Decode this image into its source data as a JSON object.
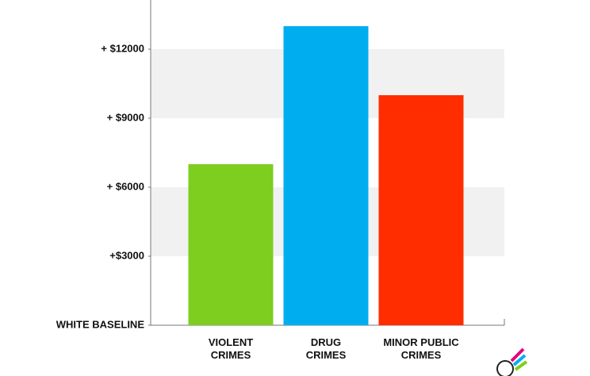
{
  "chart_data": {
    "type": "bar",
    "categories": [
      "VIOLENT\nCRIMES",
      "DRUG\nCRIMES",
      "MINOR PUBLIC\nCRIMES"
    ],
    "values": [
      7000,
      13000,
      10000
    ],
    "colors": [
      "#7dce1f",
      "#00aeef",
      "#ff2d00"
    ],
    "ylim": [
      0,
      14000
    ],
    "yticks": [
      {
        "value": 0,
        "label": "WHITE BASELINE"
      },
      {
        "value": 3000,
        "label": "+$3000"
      },
      {
        "value": 6000,
        "label": "+ $6000"
      },
      {
        "value": 9000,
        "label": "+ $9000"
      },
      {
        "value": 12000,
        "label": "+ $12000"
      }
    ],
    "grid": "bands"
  }
}
